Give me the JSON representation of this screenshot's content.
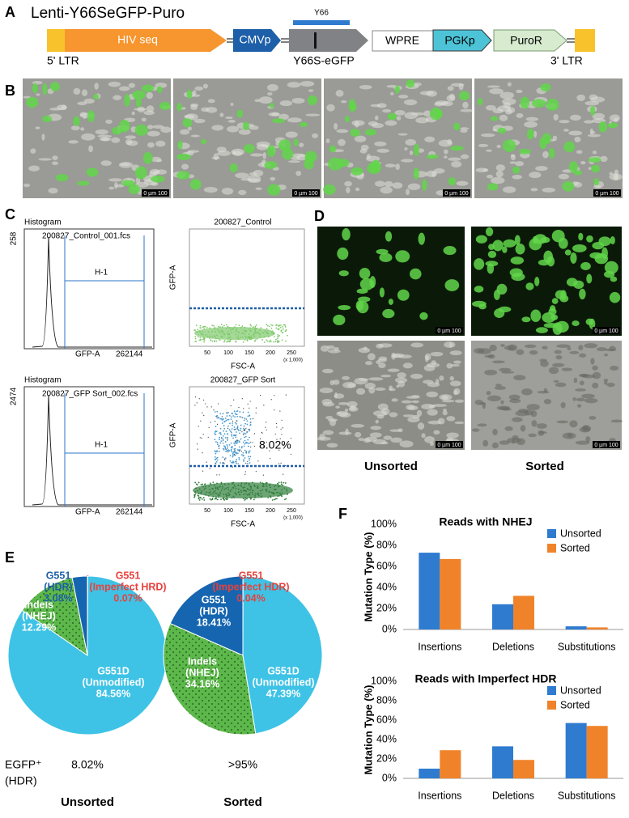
{
  "panel_a": {
    "letter": "A",
    "title": "Lenti-Y66SeGFP-Puro",
    "hiv": "HIV seq",
    "cmv": "CMVp",
    "wpre": "WPRE",
    "pgk": "PGKp",
    "puro": "PuroR",
    "y66": "Y66",
    "ltr5": "5' LTR",
    "egfp": "Y66S-eGFP",
    "ltr3": "3' LTR"
  },
  "panel_b": {
    "letter": "B",
    "scale_bar": "0 µm 100"
  },
  "panel_c": {
    "letter": "C",
    "hist_title": "Histogram",
    "gate": "H-1",
    "hist_x": "GFP-A",
    "hist_max": "262144",
    "scatter_y": "GFP-A",
    "scatter_x": "FSC-A",
    "scatter_xticks": [
      "50",
      "100",
      "150",
      "200",
      "250"
    ],
    "scatter_xunit": "(x 1,000)",
    "control": {
      "file": "200827_Control_001.fcs",
      "count": "258",
      "name": "200827_Control"
    },
    "sorted": {
      "file": "200827_GFP Sort_002.fcs",
      "count": "2474",
      "name": "200827_GFP Sort",
      "percent": "8.02%"
    }
  },
  "panel_d": {
    "letter": "D",
    "scale_bar": "0 µm 100",
    "unsorted": "Unsorted",
    "sorted": "Sorted"
  },
  "panel_e": {
    "letter": "E",
    "side_label": [
      "EGFP⁺",
      "(HDR)"
    ]
  },
  "panel_f": {
    "letter": "F"
  },
  "chart_data": [
    {
      "type": "pie",
      "title": "Unsorted",
      "note": "8.02%",
      "labels": [
        [
          "G551",
          "(Imperfect HRD)"
        ],
        [
          "G551D",
          "(Unmodified)"
        ],
        [
          "Indels",
          "(NHEJ)"
        ],
        [
          "G551",
          "(HDR)"
        ]
      ],
      "values": [
        0.07,
        84.56,
        12.29,
        3.08
      ],
      "value_labels": [
        "0.07%",
        "84.56%",
        "12.29%",
        "3.08%"
      ],
      "colors": [
        "#e8413c",
        "#3ec3e6",
        "#5cb84a",
        "#1565b0"
      ]
    },
    {
      "type": "pie",
      "title": "Sorted",
      "note": ">95%",
      "labels": [
        [
          "G551",
          "(Imperfect HDR)"
        ],
        [
          "G551D",
          "(Unmodified)"
        ],
        [
          "Indels",
          "(NHEJ)"
        ],
        [
          "G551",
          "(HDR)"
        ]
      ],
      "values": [
        0.04,
        47.39,
        34.16,
        18.41
      ],
      "value_labels": [
        "0.04%",
        "47.39%",
        "34.16%",
        "18.41%"
      ],
      "colors": [
        "#e8413c",
        "#3ec3e6",
        "#5cb84a",
        "#1565b0"
      ]
    },
    {
      "type": "bar",
      "title": "Reads with NHEJ",
      "ylabel": "Mutation Type (%)",
      "categories": [
        "Insertions",
        "Deletions",
        "Substitutions"
      ],
      "series": [
        {
          "name": "Unsorted",
          "color": "#2e7bcf",
          "values": [
            73,
            24,
            3
          ]
        },
        {
          "name": "Sorted",
          "color": "#f0832a",
          "values": [
            67,
            32,
            2
          ]
        }
      ],
      "ylim": [
        0,
        100
      ],
      "yticks": [
        {
          "value": 0,
          "label": "0%"
        },
        {
          "value": 20,
          "label": "20%"
        },
        {
          "value": 40,
          "label": "40%"
        },
        {
          "value": 60,
          "label": "60%"
        },
        {
          "value": 80,
          "label": "80%"
        },
        {
          "value": 100,
          "label": "100%"
        }
      ]
    },
    {
      "type": "bar",
      "title": "Reads with Imperfect HDR",
      "ylabel": "Mutation Type (%)",
      "categories": [
        "Insertions",
        "Deletions",
        "Substitutions"
      ],
      "series": [
        {
          "name": "Unsorted",
          "color": "#2e7bcf",
          "values": [
            10,
            33,
            57
          ]
        },
        {
          "name": "Sorted",
          "color": "#f0832a",
          "values": [
            29,
            19,
            54
          ]
        }
      ],
      "ylim": [
        0,
        100
      ],
      "yticks": [
        {
          "value": 0,
          "label": "0%"
        },
        {
          "value": 20,
          "label": "20%"
        },
        {
          "value": 40,
          "label": "40%"
        },
        {
          "value": 60,
          "label": "60%"
        },
        {
          "value": 80,
          "label": "80%"
        },
        {
          "value": 100,
          "label": "100%"
        }
      ]
    }
  ]
}
